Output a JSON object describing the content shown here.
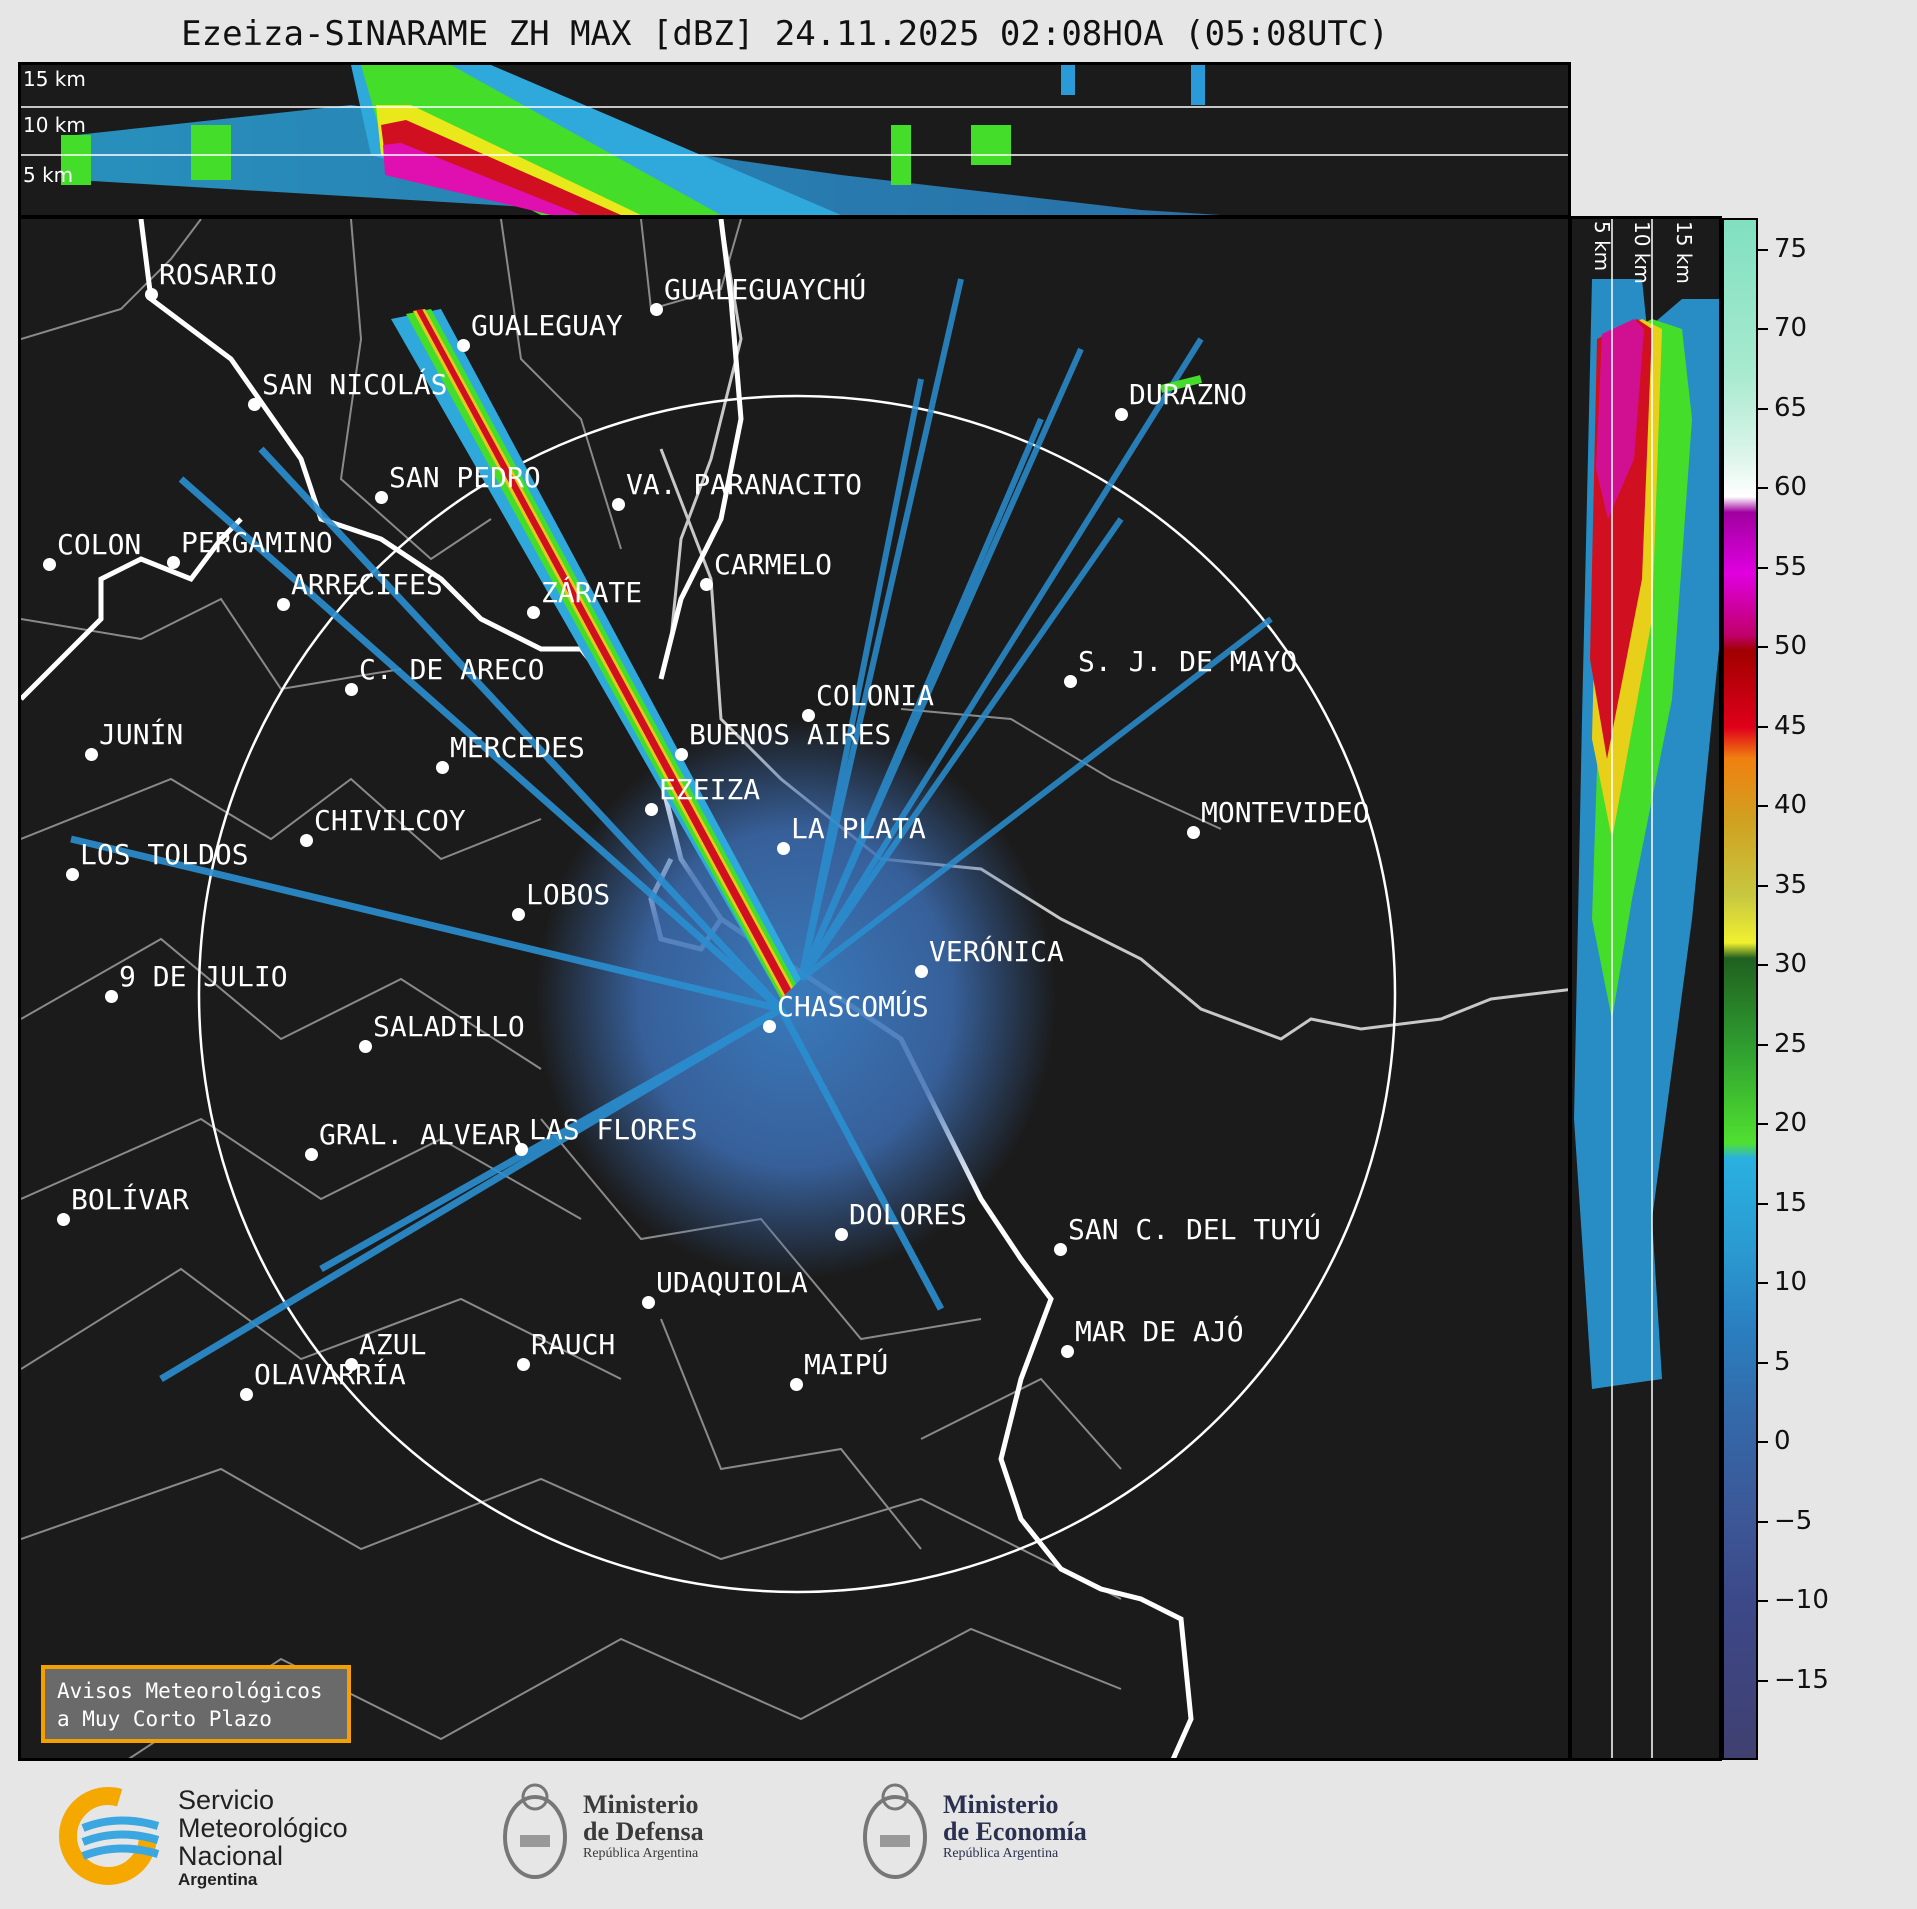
{
  "title": "Ezeiza-SINARAME ZH MAX [dBZ] 24.11.2025 02:08HOA (05:08UTC)",
  "top_panel": {
    "height_labels": [
      "15 km",
      "10 km",
      "5 km"
    ]
  },
  "side_panel": {
    "height_labels": [
      "5 km",
      "10 km",
      "15 km"
    ]
  },
  "colorbar": {
    "ticks": [
      "75",
      "70",
      "65",
      "60",
      "55",
      "50",
      "45",
      "40",
      "35",
      "30",
      "25",
      "20",
      "15",
      "10",
      "5",
      "0",
      "−5",
      "−10",
      "−15"
    ],
    "range": [
      -20,
      77
    ]
  },
  "cities": [
    {
      "name": "ROSARIO"
    },
    {
      "name": "GUALEGUAYCHÚ"
    },
    {
      "name": "GUALEGUAY"
    },
    {
      "name": "SAN NICOLÁS"
    },
    {
      "name": "DURAZNO"
    },
    {
      "name": "SAN PEDRO"
    },
    {
      "name": "VA. PARANACITO"
    },
    {
      "name": "COLON"
    },
    {
      "name": "PERGAMINO"
    },
    {
      "name": "CARMELO"
    },
    {
      "name": "ARRECIFES"
    },
    {
      "name": "ZÁRATE"
    },
    {
      "name": "S. J. DE MAYO"
    },
    {
      "name": "C. DE ARECO"
    },
    {
      "name": "COLONIA"
    },
    {
      "name": "JUNÍN"
    },
    {
      "name": "BUENOS AIRES"
    },
    {
      "name": "MERCEDES"
    },
    {
      "name": "EZEIZA"
    },
    {
      "name": "MONTEVIDEO"
    },
    {
      "name": "CHIVILCOY"
    },
    {
      "name": "LA PLATA"
    },
    {
      "name": "LOS TOLDOS"
    },
    {
      "name": "LOBOS"
    },
    {
      "name": "VERÓNICA"
    },
    {
      "name": "9 DE JULIO"
    },
    {
      "name": "CHASCOMÚS"
    },
    {
      "name": "SALADILLO"
    },
    {
      "name": "GRAL. ALVEAR"
    },
    {
      "name": "LAS FLORES"
    },
    {
      "name": "BOLÍVAR"
    },
    {
      "name": "DOLORES"
    },
    {
      "name": "SAN C. DEL TUYÚ"
    },
    {
      "name": "UDAQUIOLA"
    },
    {
      "name": "MAR DE AJÓ"
    },
    {
      "name": "AZUL"
    },
    {
      "name": "RAUCH"
    },
    {
      "name": "OLAVARRÍA"
    },
    {
      "name": "MAIPÚ"
    }
  ],
  "warning_box": {
    "line1": "Avisos Meteorológicos",
    "line2": "a Muy Corto Plazo"
  },
  "logos": {
    "smn": {
      "line1": "Servicio",
      "line2": "Meteorológico",
      "line3": "Nacional",
      "line4": "Argentina"
    },
    "defensa": {
      "line1": "Ministerio",
      "line2": "de Defensa",
      "line3": "República Argentina"
    },
    "economia": {
      "line1": "Ministerio",
      "line2": "de Economía",
      "line3": "República Argentina"
    }
  }
}
